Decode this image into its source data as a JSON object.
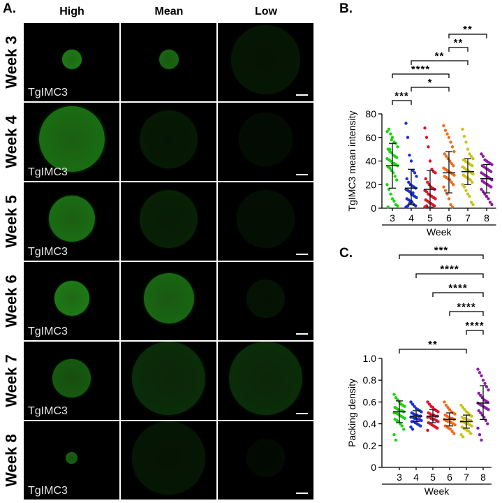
{
  "panel_labels": {
    "a": "A.",
    "b": "B.",
    "c": "C."
  },
  "columns": [
    "High",
    "Mean",
    "Low"
  ],
  "rows": [
    "Week 3",
    "Week 4",
    "Week 5",
    "Week 6",
    "Week 7",
    "Week 8"
  ],
  "image_label": "TgIMC3",
  "micrographs": [
    [
      {
        "intensity": 0.95,
        "size": 0.25
      },
      {
        "intensity": 0.8,
        "size": 0.25
      },
      {
        "intensity": 0.18,
        "size": 0.9
      }
    ],
    [
      {
        "intensity": 0.85,
        "size": 0.85
      },
      {
        "intensity": 0.2,
        "size": 0.75
      },
      {
        "intensity": 0.1,
        "size": 0.7
      }
    ],
    [
      {
        "intensity": 0.85,
        "size": 0.6
      },
      {
        "intensity": 0.25,
        "size": 0.75
      },
      {
        "intensity": 0.12,
        "size": 0.75
      }
    ],
    [
      {
        "intensity": 0.95,
        "size": 0.45
      },
      {
        "intensity": 0.8,
        "size": 0.65
      },
      {
        "intensity": 0.15,
        "size": 0.5
      }
    ],
    [
      {
        "intensity": 0.7,
        "size": 0.5
      },
      {
        "intensity": 0.35,
        "size": 0.95
      },
      {
        "intensity": 0.35,
        "size": 0.95
      }
    ],
    [
      {
        "intensity": 0.75,
        "size": 0.15
      },
      {
        "intensity": 0.18,
        "size": 0.95
      },
      {
        "intensity": 0.08,
        "size": 0.5
      }
    ]
  ],
  "chart_data": [
    {
      "type": "scatter",
      "x": [
        "3",
        "4",
        "5",
        "6",
        "7",
        "8"
      ],
      "xlabel": "Week",
      "ylabel": "TgIMC3 mean intensity",
      "ylim": [
        0,
        80
      ],
      "yticks": [
        0,
        20,
        40,
        60,
        80
      ],
      "colors": [
        "#19d60f",
        "#1a2fd8",
        "#e0122a",
        "#f36b1a",
        "#c9c418",
        "#8f1ca8"
      ],
      "means": [
        36,
        17,
        16,
        30,
        31,
        25
      ],
      "sd_low": [
        17,
        3,
        1,
        13,
        20,
        13
      ],
      "sd_high": [
        55,
        33,
        32,
        48,
        42,
        37
      ],
      "points": [
        [
          65,
          67,
          63,
          60,
          56,
          55,
          52,
          50,
          48,
          47,
          45,
          44,
          43,
          42,
          41,
          40,
          38,
          38,
          37,
          36,
          35,
          34,
          32,
          30,
          27,
          24,
          20,
          16,
          12,
          8,
          6,
          3,
          2,
          1,
          50,
          58
        ],
        [
          72,
          60,
          45,
          40,
          32,
          30,
          27,
          25,
          22,
          20,
          19,
          18,
          17,
          16,
          15,
          14,
          12,
          11,
          10,
          9,
          8,
          7,
          6,
          5,
          3,
          2,
          1,
          2,
          4,
          6,
          13
        ],
        [
          68,
          60,
          52,
          40,
          33,
          31,
          30,
          25,
          22,
          20,
          18,
          17,
          16,
          15,
          14,
          12,
          11,
          10,
          9,
          8,
          7,
          6,
          5,
          4,
          3,
          2,
          1,
          2
        ],
        [
          70,
          66,
          63,
          60,
          56,
          52,
          48,
          46,
          44,
          42,
          40,
          38,
          36,
          34,
          33,
          32,
          31,
          30,
          29,
          28,
          27,
          26,
          25,
          24,
          22,
          20,
          18,
          15,
          12,
          8,
          3,
          1
        ],
        [
          67,
          61,
          56,
          50,
          46,
          44,
          42,
          41,
          40,
          39,
          38,
          37,
          36,
          35,
          34,
          33,
          32,
          31,
          30,
          29,
          28,
          27,
          26,
          25,
          24,
          22,
          20,
          18,
          15,
          12,
          10,
          5,
          3
        ],
        [
          46,
          44,
          41,
          40,
          39,
          38,
          37,
          36,
          35,
          34,
          33,
          32,
          31,
          30,
          29,
          28,
          27,
          26,
          25,
          24,
          23,
          22,
          21,
          20,
          19,
          18,
          16,
          14,
          12,
          10,
          8,
          5,
          3
        ]
      ],
      "annotations": [
        {
          "from": "3",
          "to": "4",
          "text": "***"
        },
        {
          "from": "4",
          "to": "6",
          "text": "*"
        },
        {
          "from": "3",
          "to": "6",
          "text": "****"
        },
        {
          "from": "4",
          "to": "7",
          "text": "**"
        },
        {
          "from": "6",
          "to": "7",
          "text": "**"
        },
        {
          "from": "6",
          "to": "8",
          "text": "**"
        }
      ]
    },
    {
      "type": "scatter",
      "x": [
        "3",
        "4",
        "5",
        "6",
        "7",
        "8"
      ],
      "xlabel": "Week",
      "ylabel": "Packing density",
      "ylim": [
        0,
        1.0
      ],
      "yticks": [
        0,
        0.2,
        0.4,
        0.6,
        0.8,
        1.0
      ],
      "ytick_labels": [
        "0",
        "0.2",
        "0.4",
        "0.6",
        "0.8",
        "1.0"
      ],
      "colors": [
        "#19d60f",
        "#1a2fd8",
        "#e0122a",
        "#f36b1a",
        "#c9c418",
        "#8f1ca8"
      ],
      "means": [
        0.51,
        0.47,
        0.47,
        0.44,
        0.42,
        0.59
      ],
      "sd_low": [
        0.41,
        0.42,
        0.41,
        0.38,
        0.36,
        0.44
      ],
      "sd_high": [
        0.61,
        0.52,
        0.53,
        0.5,
        0.48,
        0.75
      ],
      "points": [
        [
          0.67,
          0.64,
          0.62,
          0.6,
          0.58,
          0.57,
          0.56,
          0.55,
          0.54,
          0.53,
          0.52,
          0.52,
          0.51,
          0.5,
          0.5,
          0.49,
          0.48,
          0.47,
          0.46,
          0.45,
          0.44,
          0.43,
          0.42,
          0.4,
          0.38,
          0.35,
          0.3,
          0.25
        ],
        [
          0.6,
          0.58,
          0.56,
          0.54,
          0.53,
          0.52,
          0.51,
          0.5,
          0.49,
          0.48,
          0.48,
          0.47,
          0.47,
          0.46,
          0.46,
          0.45,
          0.45,
          0.44,
          0.44,
          0.43,
          0.42,
          0.42,
          0.41,
          0.4,
          0.39,
          0.38,
          0.37,
          0.35
        ],
        [
          0.6,
          0.58,
          0.56,
          0.55,
          0.53,
          0.52,
          0.51,
          0.5,
          0.49,
          0.48,
          0.48,
          0.47,
          0.47,
          0.46,
          0.46,
          0.45,
          0.44,
          0.44,
          0.43,
          0.42,
          0.41,
          0.4,
          0.39,
          0.38,
          0.37,
          0.36,
          0.34
        ],
        [
          0.6,
          0.57,
          0.55,
          0.53,
          0.51,
          0.5,
          0.49,
          0.48,
          0.47,
          0.46,
          0.45,
          0.45,
          0.44,
          0.44,
          0.43,
          0.42,
          0.42,
          0.41,
          0.4,
          0.39,
          0.38,
          0.37,
          0.36,
          0.35,
          0.33,
          0.31
        ],
        [
          0.57,
          0.55,
          0.53,
          0.51,
          0.5,
          0.48,
          0.47,
          0.46,
          0.45,
          0.45,
          0.44,
          0.43,
          0.43,
          0.42,
          0.42,
          0.41,
          0.4,
          0.4,
          0.39,
          0.38,
          0.37,
          0.36,
          0.35,
          0.34,
          0.33,
          0.31,
          0.3,
          0.28
        ],
        [
          0.9,
          0.87,
          0.84,
          0.8,
          0.77,
          0.74,
          0.71,
          0.68,
          0.66,
          0.64,
          0.62,
          0.61,
          0.6,
          0.59,
          0.58,
          0.57,
          0.56,
          0.55,
          0.54,
          0.53,
          0.52,
          0.5,
          0.48,
          0.46,
          0.43,
          0.4,
          0.36,
          0.3,
          0.25
        ]
      ],
      "annotations": [
        {
          "from": "3",
          "to": "7",
          "text": "**"
        },
        {
          "from": "7",
          "to": "8",
          "text": "****"
        },
        {
          "from": "6",
          "to": "8",
          "text": "****"
        },
        {
          "from": "5",
          "to": "8",
          "text": "****"
        },
        {
          "from": "4",
          "to": "8",
          "text": "****"
        },
        {
          "from": "3",
          "to": "8",
          "text": "***"
        }
      ]
    }
  ]
}
